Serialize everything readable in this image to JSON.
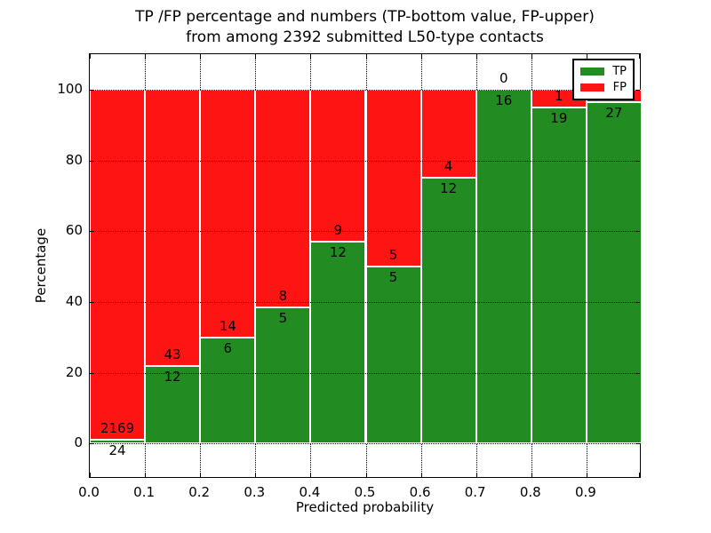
{
  "title": {
    "line1": "TP /FP percentage and numbers (TP-bottom value, FP-upper)",
    "line2": "from among 2392 submitted L50-type contacts"
  },
  "chart_data": {
    "type": "bar",
    "subtype": "stacked-percentage-histogram",
    "title": "TP /FP percentage and numbers (TP-bottom value, FP-upper)\nfrom among 2392 submitted L50-type contacts",
    "xlabel": "Predicted probability",
    "ylabel": "Percentage",
    "total_submitted_contacts": 2392,
    "bin_edges": [
      0.0,
      0.1,
      0.2,
      0.3,
      0.4,
      0.5,
      0.6,
      0.7,
      0.8,
      0.9,
      1.0
    ],
    "categories": [
      "0.0-0.1",
      "0.1-0.2",
      "0.2-0.3",
      "0.3-0.4",
      "0.4-0.5",
      "0.5-0.6",
      "0.6-0.7",
      "0.7-0.8",
      "0.8-0.9",
      "0.9-1.0"
    ],
    "series": [
      {
        "name": "TP",
        "color": "#228B22",
        "values": [
          24,
          12,
          6,
          5,
          12,
          5,
          12,
          16,
          19,
          27
        ]
      },
      {
        "name": "FP",
        "color": "#ff1414",
        "values": [
          2169,
          43,
          14,
          8,
          9,
          5,
          4,
          0,
          1,
          1
        ]
      }
    ],
    "bars_normalized_to_percent": true,
    "xticks": [
      "0.0",
      "0.1",
      "0.2",
      "0.3",
      "0.4",
      "0.5",
      "0.6",
      "0.7",
      "0.8",
      "0.9"
    ],
    "yticks": [
      0,
      20,
      40,
      60,
      80,
      100
    ],
    "xlim": [
      0,
      1
    ],
    "ylim": [
      -10,
      110
    ],
    "grid": "dotted",
    "legend": {
      "position": "upper-right",
      "entries": [
        {
          "label": "TP",
          "color": "#228B22"
        },
        {
          "label": "FP",
          "color": "#ff1414"
        }
      ]
    },
    "annotation_note": "TP count printed just below each green/red boundary, FP count just above it; FP label of last bin occluded by legend"
  }
}
